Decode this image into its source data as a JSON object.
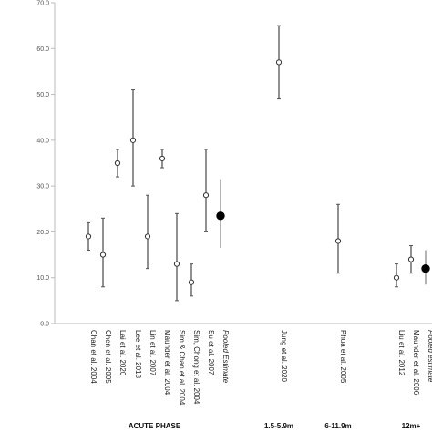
{
  "chart_data": {
    "type": "scatter",
    "title": "",
    "xlabel": "",
    "ylabel": "",
    "ylim": [
      0,
      70
    ],
    "yticks": [
      "0.0",
      "10.0",
      "20.0",
      "30.0",
      "40.0",
      "50.0",
      "60.0",
      "70.0"
    ],
    "grid": false,
    "points": [
      {
        "label": "Chan et al. 2004",
        "estimate": 19,
        "lower": 16,
        "upper": 22,
        "pooled": false
      },
      {
        "label": "Chen et al. 2005",
        "estimate": 15,
        "lower": 8,
        "upper": 23,
        "pooled": false
      },
      {
        "label": "Lai et al. 2020",
        "estimate": 35,
        "lower": 32,
        "upper": 38,
        "pooled": false
      },
      {
        "label": "Lee et al. 2018",
        "estimate": 40,
        "lower": 30,
        "upper": 51,
        "pooled": false
      },
      {
        "label": "Lin et al. 2007",
        "estimate": 19,
        "lower": 12,
        "upper": 28,
        "pooled": false
      },
      {
        "label": "Maunder et al. 2004",
        "estimate": 36,
        "lower": 34,
        "upper": 38,
        "pooled": false
      },
      {
        "label": "Sim & Chan et al. 2004",
        "estimate": 13,
        "lower": 5,
        "upper": 24,
        "pooled": false
      },
      {
        "label": "Sim, Chong et al. 2004",
        "estimate": 9,
        "lower": 6,
        "upper": 13,
        "pooled": false
      },
      {
        "label": "Su et al. 2007",
        "estimate": 28,
        "lower": 20,
        "upper": 38,
        "pooled": false
      },
      {
        "label": "Pooled Estimate",
        "estimate": 23.5,
        "lower": 16.5,
        "upper": 31.5,
        "pooled": true
      },
      {
        "label": "Jung et al. 2020",
        "estimate": 57,
        "lower": 49,
        "upper": 65,
        "pooled": false
      },
      {
        "label": "Phua et al. 2005",
        "estimate": 18,
        "lower": 11,
        "upper": 26,
        "pooled": false
      },
      {
        "label": "Liu et al. 2012",
        "estimate": 10,
        "lower": 8,
        "upper": 13,
        "pooled": false
      },
      {
        "label": "Maunder et al. 2006",
        "estimate": 14,
        "lower": 11,
        "upper": 17,
        "pooled": false
      },
      {
        "label": "Pooled estimate",
        "estimate": 12,
        "lower": 8.5,
        "upper": 16,
        "pooled": true
      }
    ],
    "phases": [
      {
        "label": "ACUTE PHASE",
        "from": 0,
        "to": 9
      },
      {
        "label": "1.5-5.9m",
        "from": 10,
        "to": 10
      },
      {
        "label": "6-11.9m",
        "from": 11,
        "to": 11
      },
      {
        "label": "12m+",
        "from": 12,
        "to": 14
      }
    ],
    "colors": {
      "ci_line": "#555555",
      "ci_pooled": "#888888",
      "marker_fill": "#ffffff",
      "marker_stroke": "#333333",
      "pooled_fill": "#000000",
      "axis": "#bbbbbb"
    }
  }
}
